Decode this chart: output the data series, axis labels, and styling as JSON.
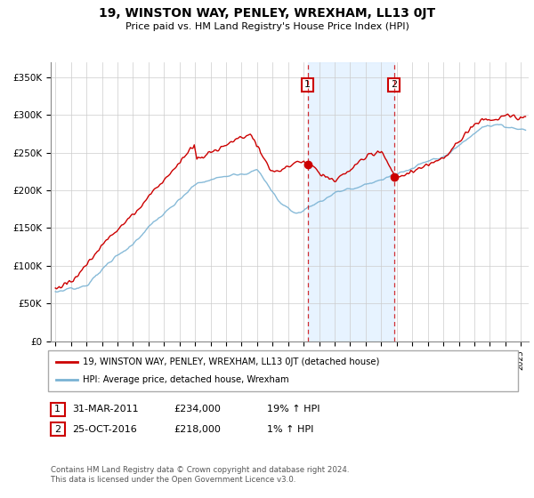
{
  "title": "19, WINSTON WAY, PENLEY, WREXHAM, LL13 0JT",
  "subtitle": "Price paid vs. HM Land Registry's House Price Index (HPI)",
  "ylabel_ticks": [
    "£0",
    "£50K",
    "£100K",
    "£150K",
    "£200K",
    "£250K",
    "£300K",
    "£350K"
  ],
  "ytick_values": [
    0,
    50000,
    100000,
    150000,
    200000,
    250000,
    300000,
    350000
  ],
  "ylim": [
    0,
    370000
  ],
  "xlim_start": 1994.7,
  "xlim_end": 2025.5,
  "hpi_color": "#7ab3d4",
  "price_color": "#cc0000",
  "transaction1_x": 2011.25,
  "transaction1_price": 234000,
  "transaction2_x": 2016.82,
  "transaction2_price": 218000,
  "legend_property": "19, WINSTON WAY, PENLEY, WREXHAM, LL13 0JT (detached house)",
  "legend_hpi": "HPI: Average price, detached house, Wrexham",
  "footer1": "Contains HM Land Registry data © Crown copyright and database right 2024.",
  "footer2": "This data is licensed under the Open Government Licence v3.0.",
  "table_row1": [
    "1",
    "31-MAR-2011",
    "£234,000",
    "19% ↑ HPI"
  ],
  "table_row2": [
    "2",
    "25-OCT-2016",
    "£218,000",
    "1% ↑ HPI"
  ],
  "bg_shade_color": "#ddeeff",
  "grid_color": "#cccccc",
  "hpi_noise_scale": 3000,
  "price_noise_scale": 4000
}
